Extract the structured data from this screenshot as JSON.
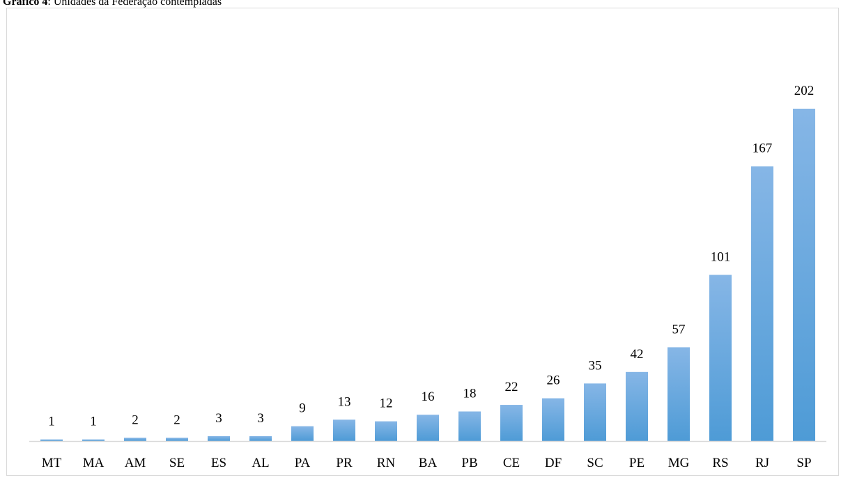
{
  "caption": {
    "label": "Gráfico 4",
    "text": ": Unidades da Federação contempladas"
  },
  "colors": {
    "bar_top": "#86b6e6",
    "bar_bottom": "#4e9bd6",
    "axis": "#d9d9d9"
  },
  "chart_data": {
    "type": "bar",
    "title": "",
    "xlabel": "",
    "ylabel": "",
    "categories": [
      "MT",
      "MA",
      "AM",
      "SE",
      "ES",
      "AL",
      "PA",
      "PR",
      "RN",
      "BA",
      "PB",
      "CE",
      "DF",
      "SC",
      "PE",
      "MG",
      "RS",
      "RJ",
      "SP"
    ],
    "values": [
      1,
      1,
      2,
      2,
      3,
      3,
      9,
      13,
      12,
      16,
      18,
      22,
      26,
      35,
      42,
      57,
      101,
      167,
      202
    ],
    "data_labels": [
      "1",
      "1",
      "2",
      "2",
      "3",
      "3",
      "9",
      "13",
      "12",
      "16",
      "18",
      "22",
      "26",
      "35",
      "42",
      "57",
      "101",
      "167",
      "202"
    ],
    "ylim": [
      0,
      202
    ],
    "grid": false,
    "legend": "none"
  }
}
